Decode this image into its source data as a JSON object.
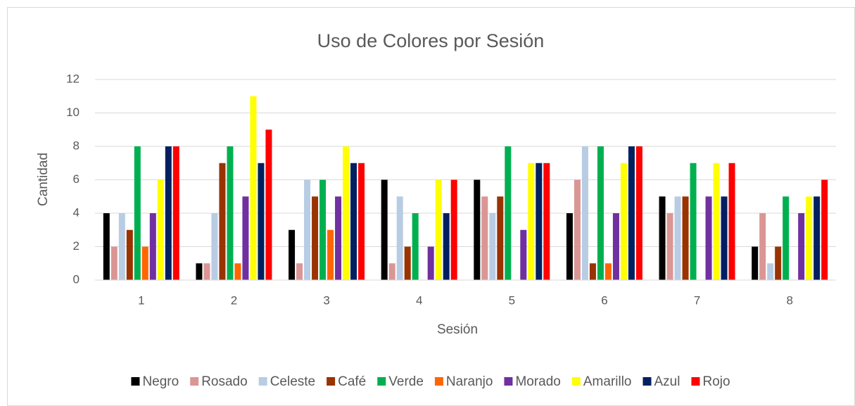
{
  "chart_data": {
    "type": "bar",
    "title": "Uso de Colores por Sesión",
    "x_label": "Sesión",
    "y_label": "Cantidad",
    "categories": [
      "1",
      "2",
      "3",
      "4",
      "5",
      "6",
      "7",
      "8"
    ],
    "series": [
      {
        "name": "Negro",
        "color": "#000000",
        "values": [
          4,
          1,
          3,
          6,
          6,
          4,
          5,
          2
        ]
      },
      {
        "name": "Rosado",
        "color": "#da9694",
        "values": [
          2,
          1,
          1,
          1,
          5,
          6,
          4,
          4
        ]
      },
      {
        "name": "Celeste",
        "color": "#b8cce4",
        "values": [
          4,
          4,
          6,
          5,
          4,
          8,
          5,
          1
        ]
      },
      {
        "name": "Café",
        "color": "#993300",
        "values": [
          3,
          7,
          5,
          2,
          5,
          1,
          5,
          2
        ]
      },
      {
        "name": "Verde",
        "color": "#00b050",
        "values": [
          8,
          8,
          6,
          4,
          8,
          8,
          7,
          5
        ]
      },
      {
        "name": "Naranjo",
        "color": "#ff6600",
        "values": [
          2,
          1,
          3,
          0,
          0,
          1,
          0,
          0
        ]
      },
      {
        "name": "Morado",
        "color": "#7030a0",
        "values": [
          4,
          5,
          5,
          2,
          3,
          4,
          5,
          4
        ]
      },
      {
        "name": "Amarillo",
        "color": "#ffff00",
        "values": [
          6,
          11,
          8,
          6,
          7,
          7,
          7,
          5
        ]
      },
      {
        "name": "Azul",
        "color": "#002060",
        "values": [
          8,
          7,
          7,
          4,
          7,
          8,
          5,
          5
        ]
      },
      {
        "name": "Rojo",
        "color": "#ff0000",
        "values": [
          8,
          9,
          7,
          6,
          7,
          8,
          7,
          6
        ]
      }
    ],
    "ylim": [
      0,
      12
    ],
    "yticks": [
      0,
      2,
      4,
      6,
      8,
      10,
      12
    ],
    "grid": true,
    "legend": "bottom"
  }
}
